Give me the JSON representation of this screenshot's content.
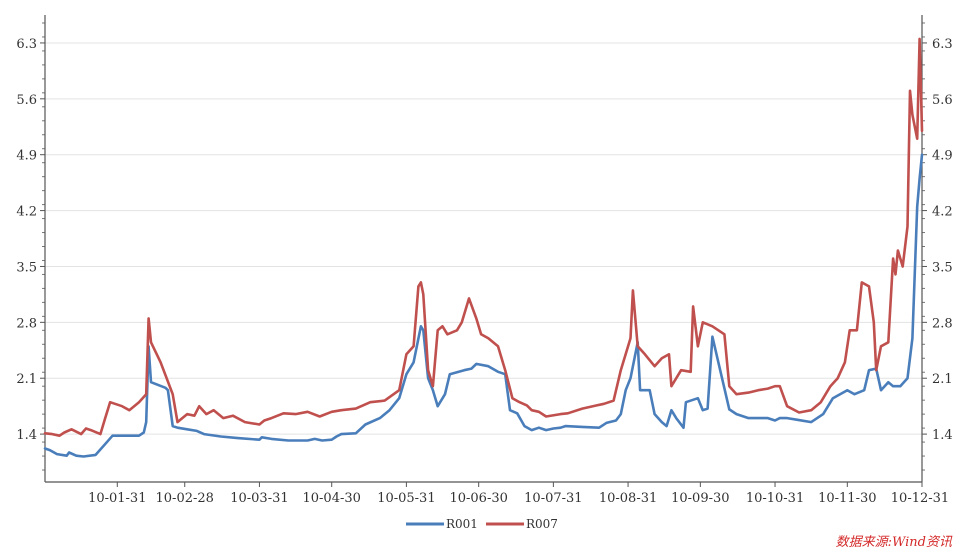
{
  "chart_data": {
    "type": "line",
    "title": "",
    "xlabel": "",
    "ylabel": "",
    "ylim": [
      0.8,
      6.65
    ],
    "y_ticks": [
      1.4,
      2.1,
      2.8,
      3.5,
      4.2,
      4.9,
      5.6,
      6.3
    ],
    "y_tick_labels_left": [
      "1.4",
      "2.1",
      "2.8",
      "3.5",
      "4.2",
      "4.9",
      "5.6",
      "6.3"
    ],
    "y_tick_labels_right": [
      "1.4",
      "2.1",
      "2.8",
      "3.5",
      "4.2",
      "4.9",
      "5.6",
      "6.3"
    ],
    "x_range": [
      "2010-01-01",
      "2010-12-31"
    ],
    "x_ticks": [
      "2010-01-31",
      "2010-02-28",
      "2010-03-31",
      "2010-04-30",
      "2010-05-31",
      "2010-06-30",
      "2010-07-31",
      "2010-08-31",
      "2010-09-30",
      "2010-10-31",
      "2010-11-30",
      "2010-12-31"
    ],
    "x_tick_labels": [
      "10-01-31",
      "10-02-28",
      "10-03-31",
      "10-04-30",
      "10-05-31",
      "10-06-30",
      "10-07-31",
      "10-08-31",
      "10-09-30",
      "10-10-31",
      "10-11-30",
      "10-12-31"
    ],
    "grid": "horizontal",
    "legend": "bottom-center",
    "series": [
      {
        "name": "R001",
        "color": "#4a7ebb",
        "points": [
          [
            "2010-01-01",
            1.22
          ],
          [
            "2010-01-03",
            1.2
          ],
          [
            "2010-01-06",
            1.15
          ],
          [
            "2010-01-10",
            1.13
          ],
          [
            "2010-01-11",
            1.17
          ],
          [
            "2010-01-14",
            1.13
          ],
          [
            "2010-01-17",
            1.12
          ],
          [
            "2010-01-22",
            1.14
          ],
          [
            "2010-01-27",
            1.31
          ],
          [
            "2010-01-29",
            1.38
          ],
          [
            "2010-02-04",
            1.38
          ],
          [
            "2010-02-09",
            1.38
          ],
          [
            "2010-02-11",
            1.42
          ],
          [
            "2010-02-12",
            1.55
          ],
          [
            "2010-02-13",
            2.5
          ],
          [
            "2010-02-14",
            2.05
          ],
          [
            "2010-02-20",
            1.98
          ],
          [
            "2010-02-21",
            1.95
          ],
          [
            "2010-02-23",
            1.5
          ],
          [
            "2010-02-25",
            1.48
          ],
          [
            "2010-03-01",
            1.46
          ],
          [
            "2010-03-05",
            1.44
          ],
          [
            "2010-03-08",
            1.4
          ],
          [
            "2010-03-15",
            1.37
          ],
          [
            "2010-03-22",
            1.35
          ],
          [
            "2010-03-31",
            1.33
          ],
          [
            "2010-04-01",
            1.36
          ],
          [
            "2010-04-05",
            1.34
          ],
          [
            "2010-04-12",
            1.32
          ],
          [
            "2010-04-20",
            1.32
          ],
          [
            "2010-04-23",
            1.34
          ],
          [
            "2010-04-26",
            1.32
          ],
          [
            "2010-04-30",
            1.33
          ],
          [
            "2010-05-02",
            1.37
          ],
          [
            "2010-05-04",
            1.4
          ],
          [
            "2010-05-10",
            1.41
          ],
          [
            "2010-05-14",
            1.52
          ],
          [
            "2010-05-20",
            1.6
          ],
          [
            "2010-05-24",
            1.7
          ],
          [
            "2010-05-28",
            1.85
          ],
          [
            "2010-05-31",
            2.15
          ],
          [
            "2010-06-03",
            2.3
          ],
          [
            "2010-06-06",
            2.75
          ],
          [
            "2010-06-07",
            2.7
          ],
          [
            "2010-06-09",
            2.1
          ],
          [
            "2010-06-11",
            1.95
          ],
          [
            "2010-06-13",
            1.75
          ],
          [
            "2010-06-16",
            1.9
          ],
          [
            "2010-06-18",
            2.15
          ],
          [
            "2010-06-24",
            2.2
          ],
          [
            "2010-06-27",
            2.22
          ],
          [
            "2010-06-29",
            2.28
          ],
          [
            "2010-07-04",
            2.25
          ],
          [
            "2010-07-08",
            2.18
          ],
          [
            "2010-07-11",
            2.15
          ],
          [
            "2010-07-13",
            1.7
          ],
          [
            "2010-07-16",
            1.66
          ],
          [
            "2010-07-19",
            1.5
          ],
          [
            "2010-07-22",
            1.45
          ],
          [
            "2010-07-25",
            1.48
          ],
          [
            "2010-07-28",
            1.45
          ],
          [
            "2010-07-31",
            1.47
          ],
          [
            "2010-08-03",
            1.48
          ],
          [
            "2010-08-05",
            1.5
          ],
          [
            "2010-08-12",
            1.49
          ],
          [
            "2010-08-19",
            1.48
          ],
          [
            "2010-08-22",
            1.54
          ],
          [
            "2010-08-26",
            1.57
          ],
          [
            "2010-08-28",
            1.65
          ],
          [
            "2010-08-30",
            1.95
          ],
          [
            "2010-09-01",
            2.1
          ],
          [
            "2010-09-04",
            2.55
          ],
          [
            "2010-09-05",
            1.95
          ],
          [
            "2010-09-09",
            1.95
          ],
          [
            "2010-09-11",
            1.65
          ],
          [
            "2010-09-14",
            1.55
          ],
          [
            "2010-09-16",
            1.5
          ],
          [
            "2010-09-18",
            1.7
          ],
          [
            "2010-09-20",
            1.6
          ],
          [
            "2010-09-23",
            1.48
          ],
          [
            "2010-09-24",
            1.8
          ],
          [
            "2010-09-29",
            1.85
          ],
          [
            "2010-10-01",
            1.7
          ],
          [
            "2010-10-03",
            1.72
          ],
          [
            "2010-10-05",
            2.62
          ],
          [
            "2010-10-12",
            1.71
          ],
          [
            "2010-10-15",
            1.65
          ],
          [
            "2010-10-20",
            1.6
          ],
          [
            "2010-10-28",
            1.6
          ],
          [
            "2010-10-31",
            1.57
          ],
          [
            "2010-11-02",
            1.6
          ],
          [
            "2010-11-05",
            1.6
          ],
          [
            "2010-11-09",
            1.58
          ],
          [
            "2010-11-15",
            1.55
          ],
          [
            "2010-11-20",
            1.65
          ],
          [
            "2010-11-24",
            1.85
          ],
          [
            "2010-11-27",
            1.9
          ],
          [
            "2010-11-30",
            1.95
          ],
          [
            "2010-12-03",
            1.9
          ],
          [
            "2010-12-07",
            1.95
          ],
          [
            "2010-12-09",
            2.2
          ],
          [
            "2010-12-12",
            2.22
          ],
          [
            "2010-12-14",
            1.95
          ],
          [
            "2010-12-17",
            2.05
          ],
          [
            "2010-12-19",
            2.0
          ],
          [
            "2010-12-22",
            2.0
          ],
          [
            "2010-12-25",
            2.1
          ],
          [
            "2010-12-27",
            2.6
          ],
          [
            "2010-12-29",
            4.25
          ],
          [
            "2010-12-30",
            4.6
          ],
          [
            "2010-12-31",
            4.9
          ]
        ]
      },
      {
        "name": "R007",
        "color": "#c0504d",
        "points": [
          [
            "2010-01-01",
            1.41
          ],
          [
            "2010-01-04",
            1.4
          ],
          [
            "2010-01-07",
            1.38
          ],
          [
            "2010-01-09",
            1.42
          ],
          [
            "2010-01-12",
            1.46
          ],
          [
            "2010-01-16",
            1.4
          ],
          [
            "2010-01-18",
            1.47
          ],
          [
            "2010-01-20",
            1.45
          ],
          [
            "2010-01-24",
            1.4
          ],
          [
            "2010-01-26",
            1.6
          ],
          [
            "2010-01-28",
            1.8
          ],
          [
            "2010-02-02",
            1.75
          ],
          [
            "2010-02-05",
            1.7
          ],
          [
            "2010-02-09",
            1.8
          ],
          [
            "2010-02-12",
            1.9
          ],
          [
            "2010-02-13",
            2.85
          ],
          [
            "2010-02-14",
            2.55
          ],
          [
            "2010-02-18",
            2.3
          ],
          [
            "2010-02-23",
            1.9
          ],
          [
            "2010-02-25",
            1.55
          ],
          [
            "2010-02-27",
            1.6
          ],
          [
            "2010-03-01",
            1.65
          ],
          [
            "2010-03-04",
            1.63
          ],
          [
            "2010-03-06",
            1.75
          ],
          [
            "2010-03-09",
            1.65
          ],
          [
            "2010-03-12",
            1.7
          ],
          [
            "2010-03-16",
            1.6
          ],
          [
            "2010-03-20",
            1.63
          ],
          [
            "2010-03-25",
            1.55
          ],
          [
            "2010-03-31",
            1.52
          ],
          [
            "2010-04-02",
            1.57
          ],
          [
            "2010-04-05",
            1.6
          ],
          [
            "2010-04-10",
            1.66
          ],
          [
            "2010-04-15",
            1.65
          ],
          [
            "2010-04-20",
            1.68
          ],
          [
            "2010-04-25",
            1.62
          ],
          [
            "2010-04-30",
            1.68
          ],
          [
            "2010-05-04",
            1.7
          ],
          [
            "2010-05-10",
            1.72
          ],
          [
            "2010-05-16",
            1.8
          ],
          [
            "2010-05-22",
            1.82
          ],
          [
            "2010-05-28",
            1.95
          ],
          [
            "2010-05-31",
            2.4
          ],
          [
            "2010-06-03",
            2.5
          ],
          [
            "2010-06-05",
            3.25
          ],
          [
            "2010-06-06",
            3.3
          ],
          [
            "2010-06-07",
            3.15
          ],
          [
            "2010-06-09",
            2.2
          ],
          [
            "2010-06-11",
            2.0
          ],
          [
            "2010-06-13",
            2.7
          ],
          [
            "2010-06-15",
            2.75
          ],
          [
            "2010-06-17",
            2.65
          ],
          [
            "2010-06-21",
            2.7
          ],
          [
            "2010-06-23",
            2.8
          ],
          [
            "2010-06-26",
            3.1
          ],
          [
            "2010-06-29",
            2.85
          ],
          [
            "2010-07-01",
            2.65
          ],
          [
            "2010-07-04",
            2.6
          ],
          [
            "2010-07-08",
            2.5
          ],
          [
            "2010-07-11",
            2.2
          ],
          [
            "2010-07-14",
            1.85
          ],
          [
            "2010-07-17",
            1.8
          ],
          [
            "2010-07-20",
            1.76
          ],
          [
            "2010-07-22",
            1.7
          ],
          [
            "2010-07-25",
            1.68
          ],
          [
            "2010-07-28",
            1.62
          ],
          [
            "2010-08-03",
            1.65
          ],
          [
            "2010-08-06",
            1.66
          ],
          [
            "2010-08-12",
            1.72
          ],
          [
            "2010-08-18",
            1.76
          ],
          [
            "2010-08-21",
            1.78
          ],
          [
            "2010-08-25",
            1.82
          ],
          [
            "2010-08-28",
            2.2
          ],
          [
            "2010-09-01",
            2.6
          ],
          [
            "2010-09-02",
            3.2
          ],
          [
            "2010-09-04",
            2.5
          ],
          [
            "2010-09-07",
            2.4
          ],
          [
            "2010-09-11",
            2.25
          ],
          [
            "2010-09-14",
            2.35
          ],
          [
            "2010-09-17",
            2.4
          ],
          [
            "2010-09-18",
            2.0
          ],
          [
            "2010-09-22",
            2.2
          ],
          [
            "2010-09-26",
            2.18
          ],
          [
            "2010-09-27",
            3.0
          ],
          [
            "2010-09-29",
            2.5
          ],
          [
            "2010-10-01",
            2.8
          ],
          [
            "2010-10-05",
            2.75
          ],
          [
            "2010-10-10",
            2.65
          ],
          [
            "2010-10-12",
            2.0
          ],
          [
            "2010-10-15",
            1.9
          ],
          [
            "2010-10-20",
            1.92
          ],
          [
            "2010-10-24",
            1.95
          ],
          [
            "2010-10-28",
            1.97
          ],
          [
            "2010-10-31",
            2.0
          ],
          [
            "2010-11-02",
            2.0
          ],
          [
            "2010-11-05",
            1.75
          ],
          [
            "2010-11-10",
            1.67
          ],
          [
            "2010-11-15",
            1.7
          ],
          [
            "2010-11-19",
            1.8
          ],
          [
            "2010-11-23",
            2.0
          ],
          [
            "2010-11-26",
            2.1
          ],
          [
            "2010-11-29",
            2.3
          ],
          [
            "2010-12-01",
            2.7
          ],
          [
            "2010-12-04",
            2.7
          ],
          [
            "2010-12-06",
            3.3
          ],
          [
            "2010-12-09",
            3.25
          ],
          [
            "2010-12-11",
            2.8
          ],
          [
            "2010-12-12",
            2.2
          ],
          [
            "2010-12-14",
            2.5
          ],
          [
            "2010-12-17",
            2.55
          ],
          [
            "2010-12-19",
            3.6
          ],
          [
            "2010-12-20",
            3.4
          ],
          [
            "2010-12-21",
            3.7
          ],
          [
            "2010-12-23",
            3.5
          ],
          [
            "2010-12-25",
            4.0
          ],
          [
            "2010-12-26",
            5.7
          ],
          [
            "2010-12-27",
            5.4
          ],
          [
            "2010-12-29",
            5.1
          ],
          [
            "2010-12-30",
            6.35
          ],
          [
            "2010-12-31",
            5.2
          ]
        ]
      }
    ],
    "source_note": "数据来源:Wind资讯"
  }
}
